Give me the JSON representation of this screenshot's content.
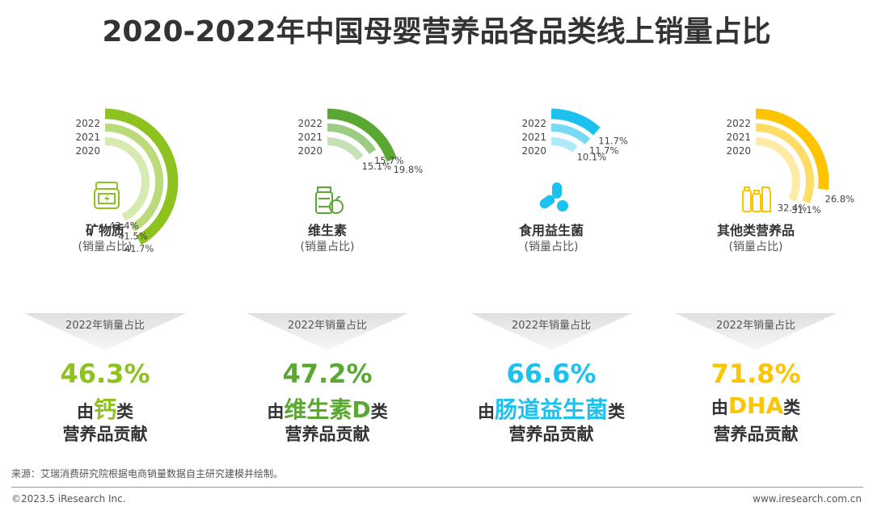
{
  "title": "2020-2022年中国母婴营养品各品类线上销量占比",
  "legend_years": [
    "2022",
    "2021",
    "2020"
  ],
  "categories": [
    {
      "name": "矿物质",
      "sub": "(销量占比)",
      "icon": "jar-icon",
      "color": "#8dc21f",
      "chevron_label": "2022年销量占比",
      "big_pct": "46.3%",
      "prefix": "由",
      "highlight": "钙",
      "suffix": "类",
      "line3": "营养品贡献"
    },
    {
      "name": "维生素",
      "sub": "(销量占比)",
      "icon": "vitamin-bottle-icon",
      "color": "#5aa832",
      "chevron_label": "2022年销量占比",
      "big_pct": "47.2%",
      "prefix": "由",
      "highlight": "维生素D",
      "suffix": "类",
      "line3": "营养品贡献"
    },
    {
      "name": "食用益生菌",
      "sub": "(销量占比)",
      "icon": "capsule-icon",
      "color": "#1cc2ef",
      "chevron_label": "2022年销量占比",
      "big_pct": "66.6%",
      "prefix": "由",
      "highlight": "肠道益生菌",
      "suffix": "类",
      "line3": "营养品贡献"
    },
    {
      "name": "其他类营养品",
      "sub": "(销量占比)",
      "icon": "bottles-icon",
      "color": "#ffc400",
      "chevron_label": "2022年销量占比",
      "big_pct": "71.8%",
      "prefix": "由",
      "highlight": "DHA",
      "suffix": "类",
      "line3": "营养品贡献"
    }
  ],
  "chart_data": [
    {
      "type": "radial-bar",
      "category": "矿物质",
      "unit": "%",
      "series": [
        {
          "name": "2022",
          "value": 41.7
        },
        {
          "name": "2021",
          "value": 41.5
        },
        {
          "name": "2020",
          "value": 42.4
        }
      ],
      "labels": [
        "42.4%",
        "41.5%",
        "41.7%"
      ]
    },
    {
      "type": "radial-bar",
      "category": "维生素",
      "unit": "%",
      "series": [
        {
          "name": "2022",
          "value": 19.8
        },
        {
          "name": "2021",
          "value": 15.7
        },
        {
          "name": "2020",
          "value": 15.1
        }
      ],
      "labels": [
        "15.1%",
        "15.7%",
        "19.8%"
      ]
    },
    {
      "type": "radial-bar",
      "category": "食用益生菌",
      "unit": "%",
      "series": [
        {
          "name": "2022",
          "value": 11.7
        },
        {
          "name": "2021",
          "value": 11.7
        },
        {
          "name": "2020",
          "value": 10.1
        }
      ],
      "labels": [
        "11.7%",
        "11.7%",
        "10.1%"
      ]
    },
    {
      "type": "radial-bar",
      "category": "其他类营养品",
      "unit": "%",
      "series": [
        {
          "name": "2022",
          "value": 26.8
        },
        {
          "name": "2021",
          "value": 31.1
        },
        {
          "name": "2020",
          "value": 32.4
        }
      ],
      "labels": [
        "26.8%",
        "31.1%",
        "32.4%"
      ]
    }
  ],
  "footer": {
    "source": "来源：艾瑞消费研究院根据电商销量数据自主研究建模并绘制。",
    "copyright": "©2023.5 iResearch Inc.",
    "website": "www.iresearch.com.cn"
  }
}
